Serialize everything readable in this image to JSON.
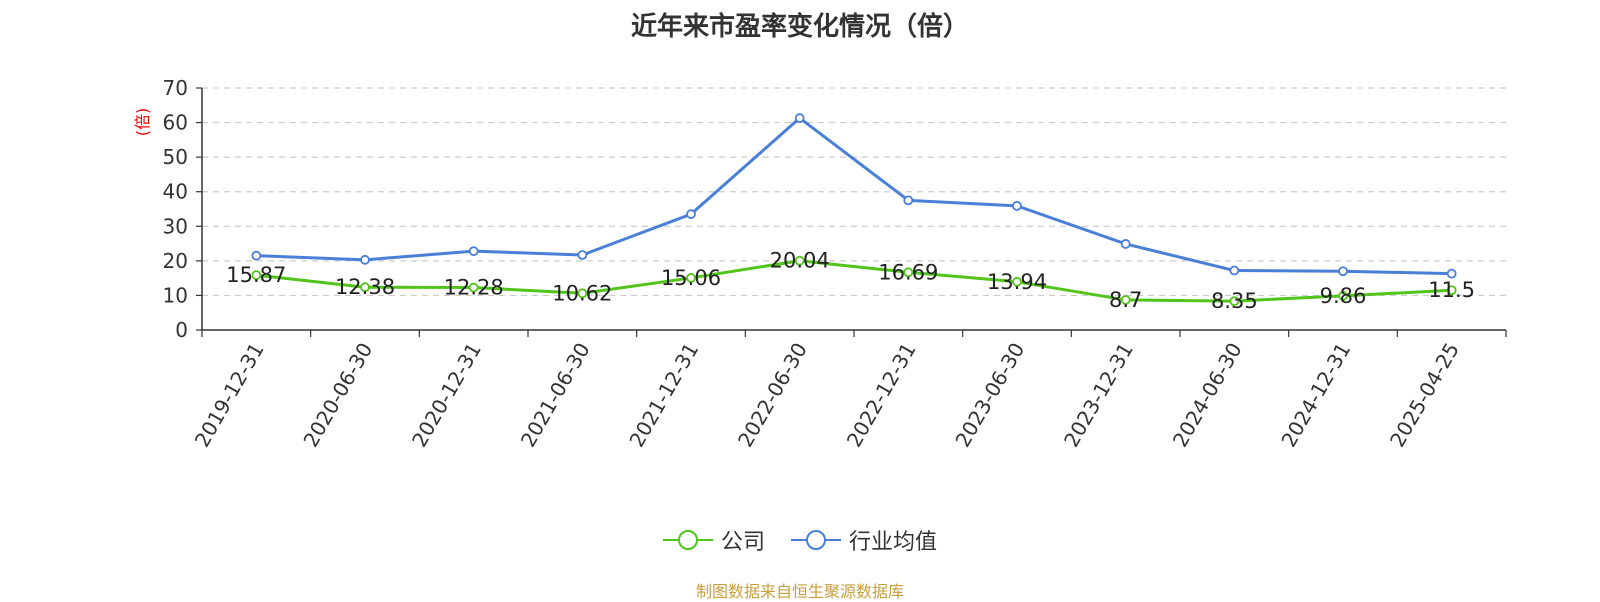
{
  "chart_data": {
    "type": "line",
    "title": "近年来市盈率变化情况（倍）",
    "ylabel": "(倍)",
    "xlabel": "",
    "ylim": [
      0,
      70
    ],
    "yticks": [
      0,
      10,
      20,
      30,
      40,
      50,
      60,
      70
    ],
    "grid": true,
    "legend_position": "bottom",
    "categories": [
      "2019-12-31",
      "2020-06-30",
      "2020-12-31",
      "2021-06-30",
      "2021-12-31",
      "2022-06-30",
      "2022-12-31",
      "2023-06-30",
      "2023-12-31",
      "2024-06-30",
      "2024-12-31",
      "2025-04-25"
    ],
    "series": [
      {
        "name": "公司",
        "color": "#52c41a",
        "values": [
          15.87,
          12.38,
          12.28,
          10.62,
          15.06,
          20.04,
          16.69,
          13.94,
          8.7,
          8.35,
          9.86,
          11.5
        ],
        "labels": [
          "15.87",
          "12.38",
          "12.28",
          "10.62",
          "15.06",
          "20.04",
          "16.69",
          "13.94",
          "8.7",
          "8.35",
          "9.86",
          "11.5"
        ]
      },
      {
        "name": "行业均值",
        "color": "#4a7fd8",
        "values": [
          21.5,
          20.3,
          22.8,
          21.7,
          33.5,
          61.3,
          37.5,
          35.9,
          24.9,
          17.2,
          17.0,
          16.3
        ]
      }
    ]
  },
  "source_note": "制图数据来自恒生聚源数据库",
  "colors": {
    "ylabel": "#e60000",
    "source_note": "#c8a03c",
    "axis": "#333333",
    "grid": "#cccccc"
  }
}
